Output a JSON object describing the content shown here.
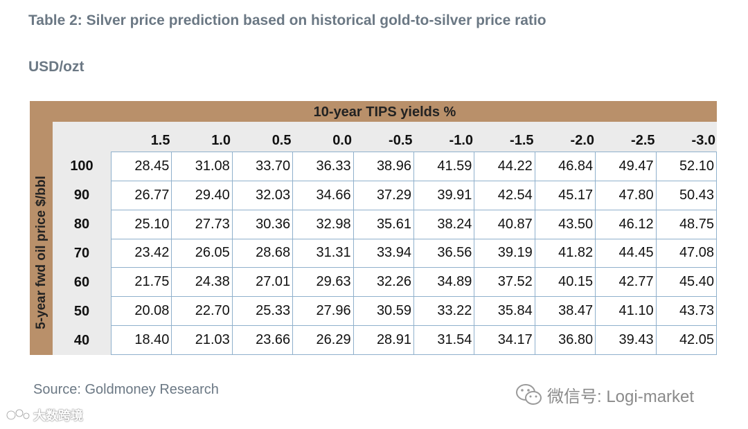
{
  "title": "Table 2: Silver price prediction based on historical gold-to-silver price ratio",
  "unit": "USD/ozt",
  "table": {
    "column_axis_label": "10-year TIPS yields %",
    "row_axis_label": "5-year fwd oil price $/bbl",
    "columns": [
      "1.5",
      "1.0",
      "0.5",
      "0.0",
      "-0.5",
      "-1.0",
      "-1.5",
      "-2.0",
      "-2.5",
      "-3.0"
    ],
    "rows": [
      {
        "label": "100",
        "values": [
          "28.45",
          "31.08",
          "33.70",
          "36.33",
          "38.96",
          "41.59",
          "44.22",
          "46.84",
          "49.47",
          "52.10"
        ]
      },
      {
        "label": "90",
        "values": [
          "26.77",
          "29.40",
          "32.03",
          "34.66",
          "37.29",
          "39.91",
          "42.54",
          "45.17",
          "47.80",
          "50.43"
        ]
      },
      {
        "label": "80",
        "values": [
          "25.10",
          "27.73",
          "30.36",
          "32.98",
          "35.61",
          "38.24",
          "40.87",
          "43.50",
          "46.12",
          "48.75"
        ]
      },
      {
        "label": "70",
        "values": [
          "23.42",
          "26.05",
          "28.68",
          "31.31",
          "33.94",
          "36.56",
          "39.19",
          "41.82",
          "44.45",
          "47.08"
        ]
      },
      {
        "label": "60",
        "values": [
          "21.75",
          "24.38",
          "27.01",
          "29.63",
          "32.26",
          "34.89",
          "37.52",
          "40.15",
          "42.77",
          "45.40"
        ]
      },
      {
        "label": "50",
        "values": [
          "20.08",
          "22.70",
          "25.33",
          "27.96",
          "30.59",
          "33.22",
          "35.84",
          "38.47",
          "41.10",
          "43.73"
        ]
      },
      {
        "label": "40",
        "values": [
          "18.40",
          "21.03",
          "23.66",
          "26.29",
          "28.91",
          "31.54",
          "34.17",
          "36.80",
          "39.43",
          "42.05"
        ]
      }
    ]
  },
  "source": "Source: Goldmoney Research",
  "watermark": {
    "wechat_text": "微信号: Logi-market",
    "brand_text": "大数跨境",
    "icon_names": [
      "wechat-icon",
      "brand-logo-icon"
    ]
  },
  "colors": {
    "frame": "#b9906a",
    "inner": "#ebebeb",
    "grid_line": "#8fb0cc",
    "title_text": "#6b7884"
  }
}
